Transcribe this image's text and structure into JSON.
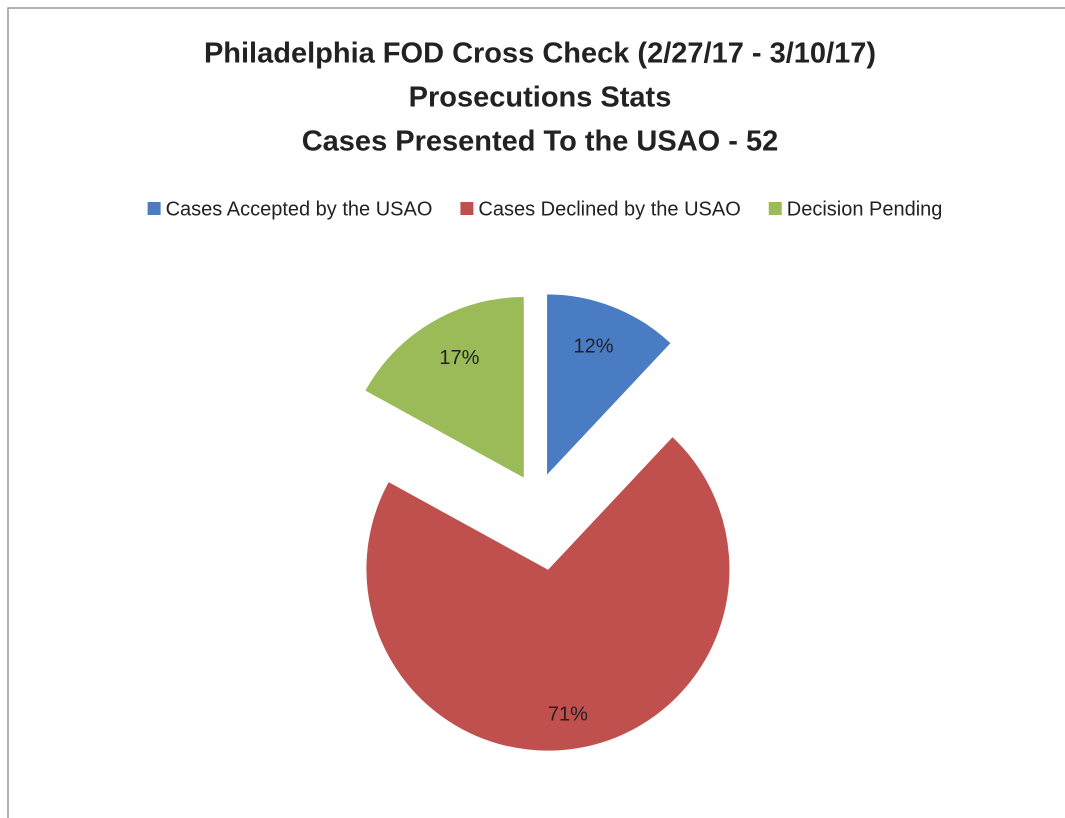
{
  "chart_data": {
    "type": "pie",
    "title": [
      "Philadelphia FOD Cross Check (2/27/17 - 3/10/17)",
      "Prosecutions Stats",
      "Cases Presented To the USAO - 52"
    ],
    "categories": [
      "Cases Accepted by the USAO",
      "Cases Declined by the USAO",
      "Decision Pending"
    ],
    "values": [
      12,
      71,
      17
    ],
    "value_labels": [
      "12%",
      "71%",
      "17%"
    ],
    "colors": [
      "#4a7cc4",
      "#c0504d",
      "#9bbb59"
    ],
    "legend": "top"
  }
}
